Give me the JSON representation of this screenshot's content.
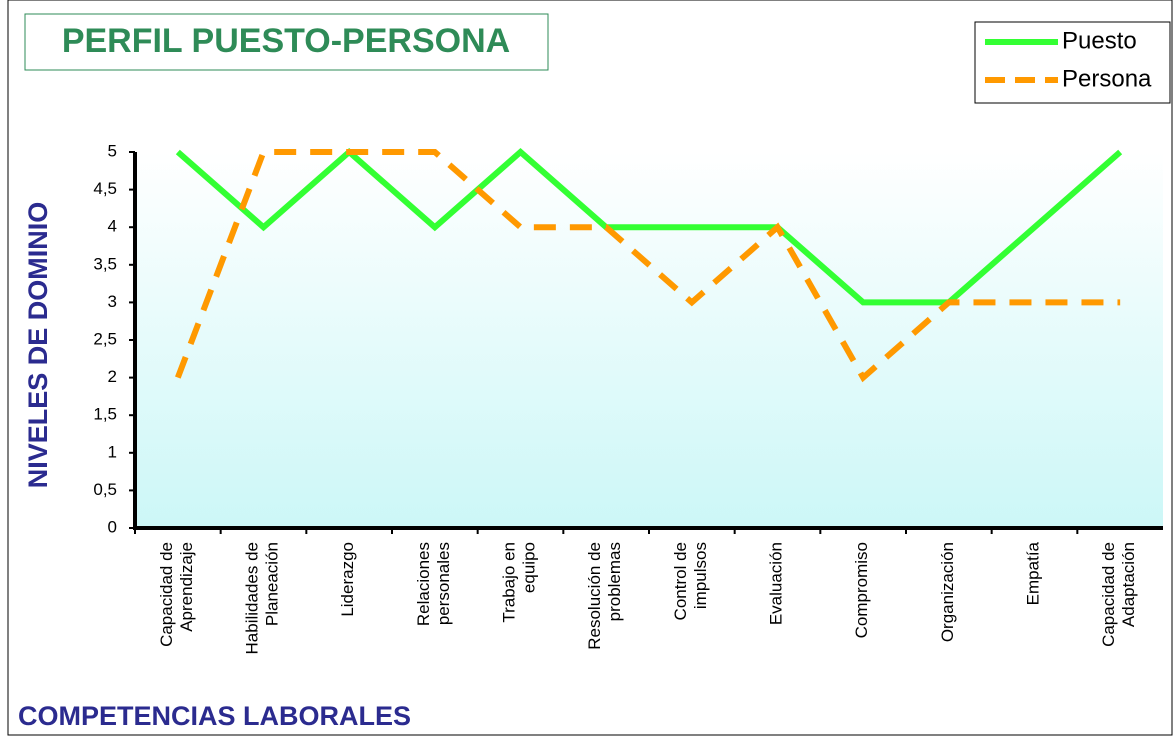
{
  "chart_data": {
    "type": "line",
    "title": "PERFIL PUESTO-PERSONA",
    "x_label": "COMPETENCIAS LABORALES",
    "y_label": "NIVELES DE DOMINIO",
    "categories": [
      "Capacidad de\nAprendizaje",
      "Habilidades de\nPlaneación",
      "Liderazgo",
      "Relaciones\npersonales",
      "Trabajo en\nequipo",
      "Resolución de\nproblemas",
      "Control de\nimpulsos",
      "Evaluación",
      "Compromiso",
      "Organización",
      "Empatía",
      "Capacidad de\nAdaptación"
    ],
    "series": [
      {
        "name": "Puesto",
        "color": "#33ff33",
        "dash": false,
        "values": [
          5,
          4,
          5,
          4,
          5,
          4,
          4,
          4,
          3,
          3,
          4,
          5
        ]
      },
      {
        "name": "Persona",
        "color": "#ff9900",
        "dash": true,
        "values": [
          2,
          5,
          5,
          5,
          4,
          4,
          3,
          4,
          2,
          3,
          3,
          3
        ]
      }
    ],
    "ylim": [
      0,
      5
    ],
    "yticks": [
      0,
      {
        "value": 0.5,
        "label": "0,5"
      },
      1,
      {
        "value": 1.5,
        "label": "1,5"
      },
      2,
      {
        "value": 2.5,
        "label": "2,5"
      },
      3,
      {
        "value": 3.5,
        "label": "3,5"
      },
      4,
      {
        "value": 4.5,
        "label": "4,5"
      },
      5
    ],
    "legend": "top-right"
  }
}
